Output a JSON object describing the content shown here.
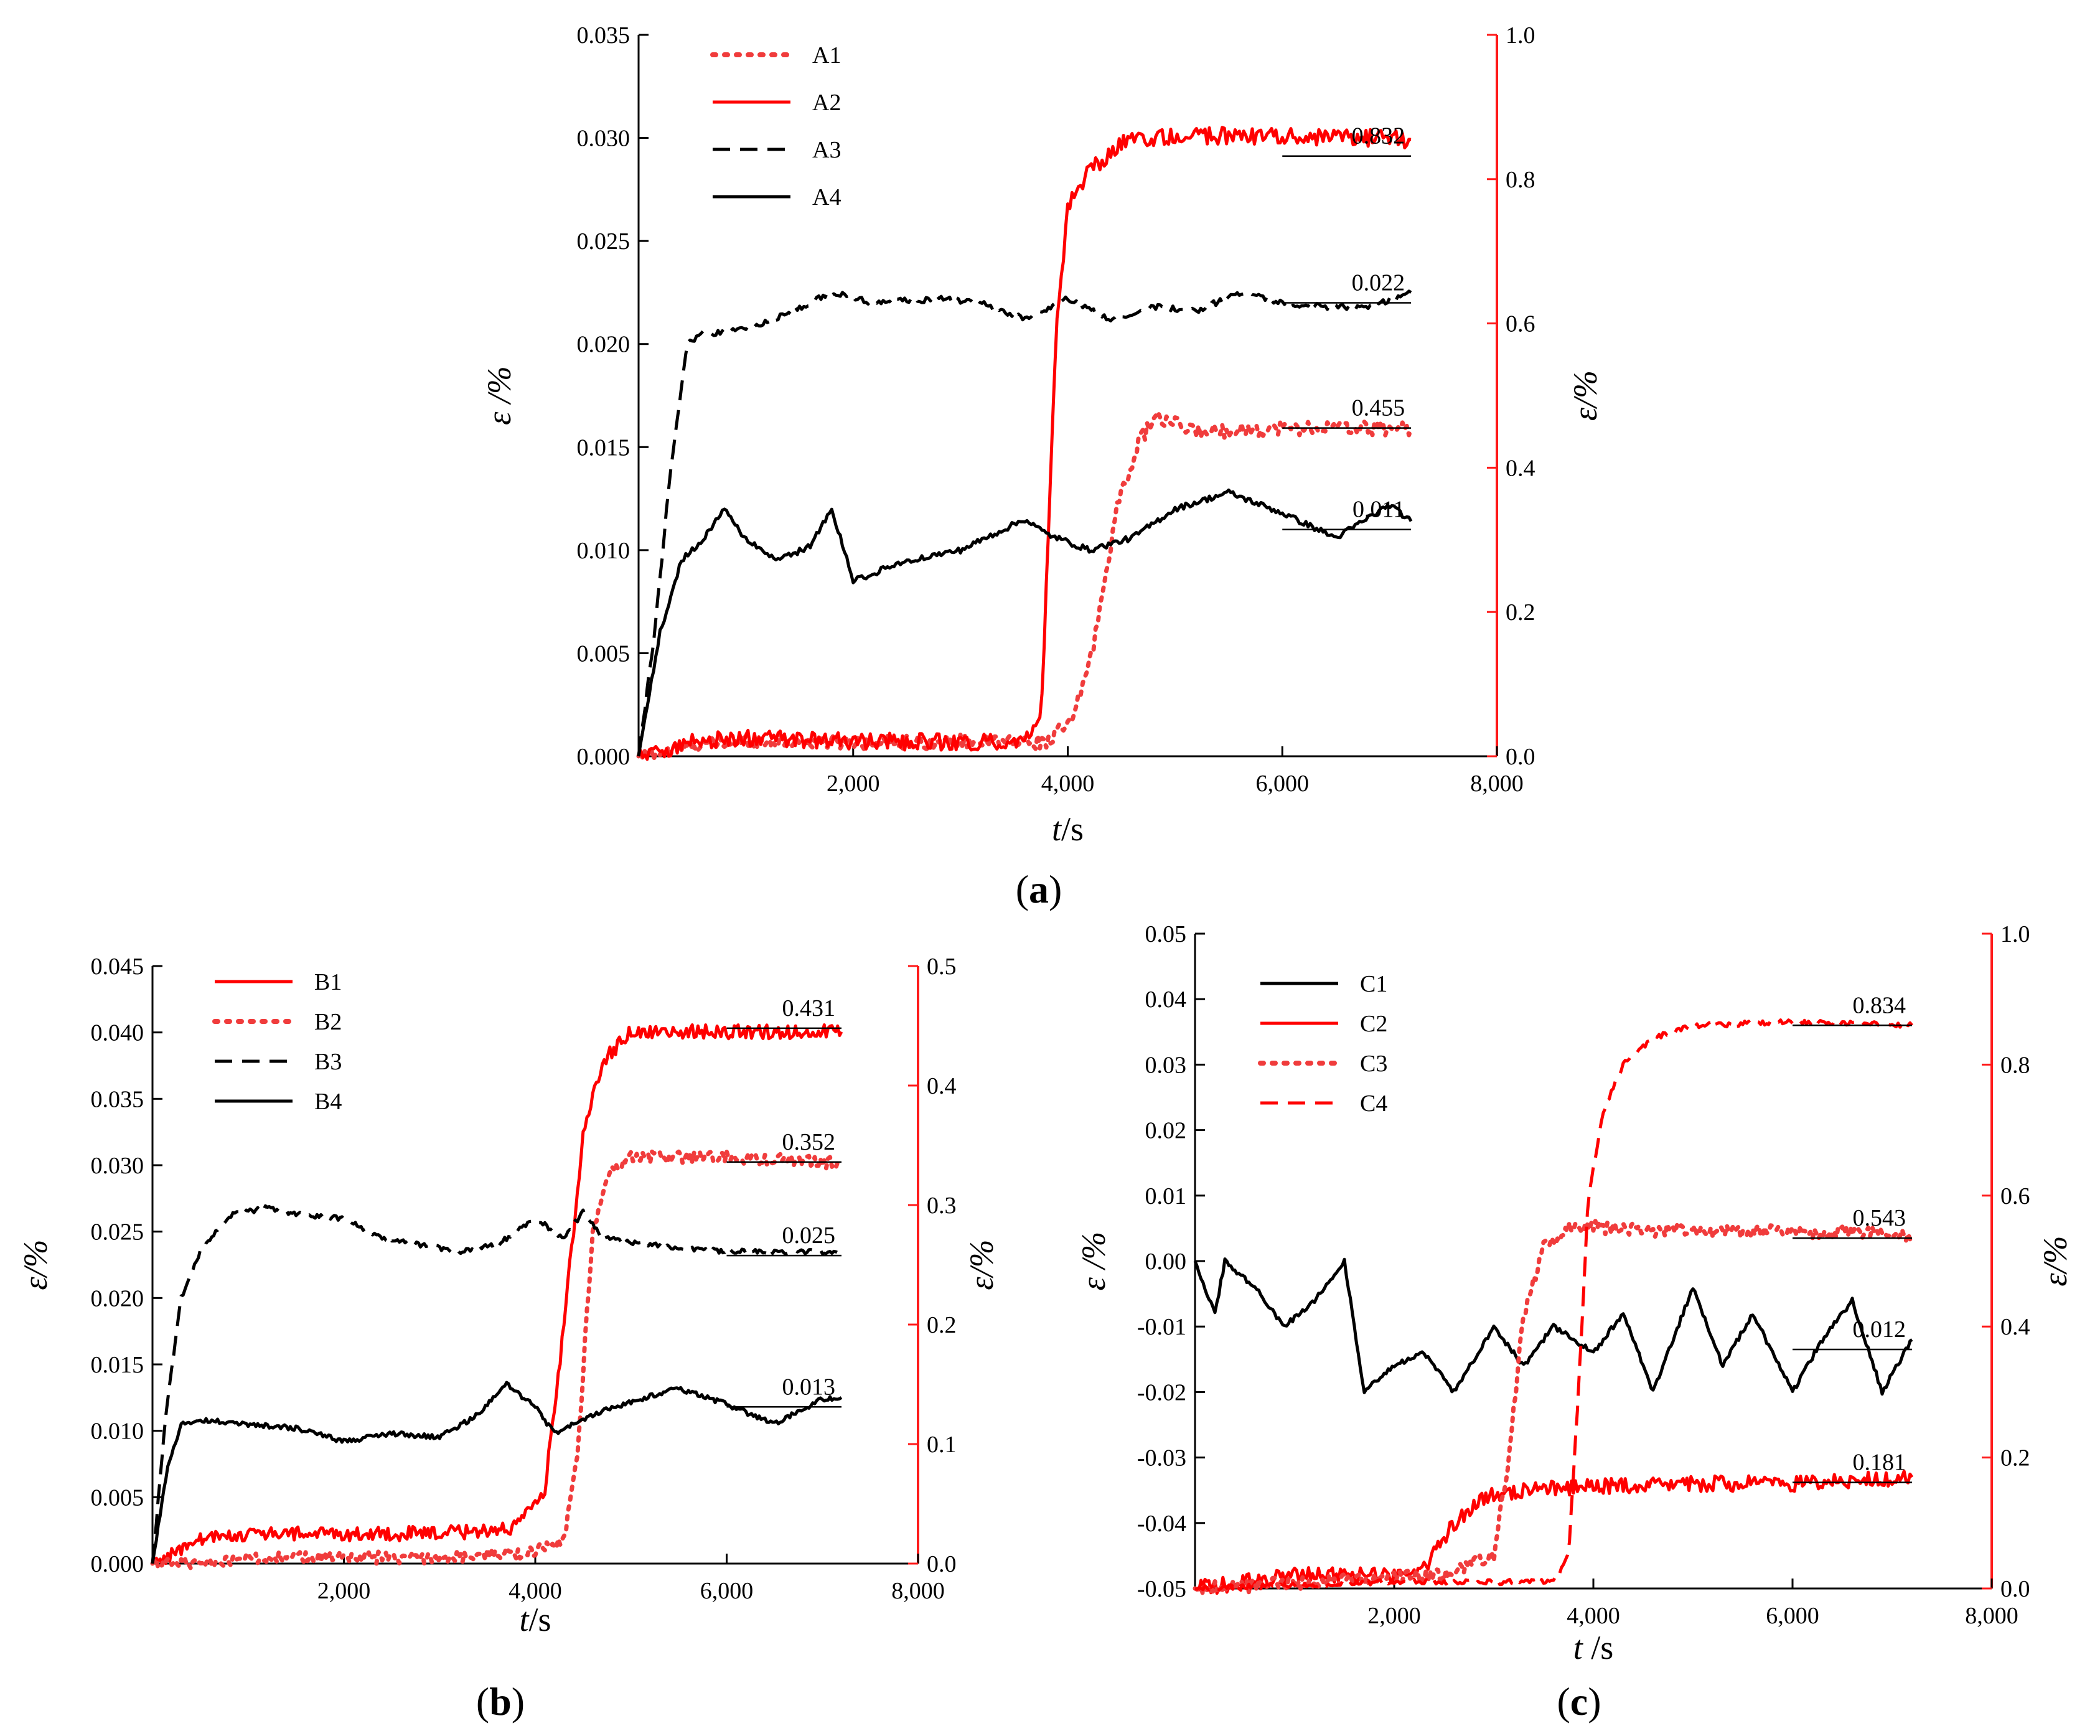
{
  "chart_data": [
    {
      "type": "line",
      "panel_label": "(a)",
      "panel_label_parts": [
        "(",
        "a",
        ")"
      ],
      "xlabel": "t/s",
      "xlabel_parts": [
        "t",
        "/s"
      ],
      "ylabel_left": "ε /%",
      "ylabel_right": "ε/%",
      "xlim": [
        0,
        8000
      ],
      "ylim_left": [
        0,
        0.035
      ],
      "ylim_right": [
        0,
        1.0
      ],
      "x_ticks": [
        "2,000",
        "4,000",
        "6,000",
        "8,000"
      ],
      "y_left_ticks": [
        "0.000",
        "0.005",
        "0.010",
        "0.015",
        "0.020",
        "0.025",
        "0.030",
        "0.035"
      ],
      "y_right_ticks": [
        "0.0",
        "0.2",
        "0.4",
        "0.6",
        "0.8",
        "1.0"
      ],
      "right_axis_color": "#ff1a1a",
      "series": [
        {
          "name": "A1",
          "axis": "right",
          "color": "#f03c3c",
          "style": "dotted",
          "x": [
            0,
            500,
            1000,
            2000,
            3000,
            3800,
            4050,
            4250,
            4450,
            4650,
            4800,
            5200,
            6000,
            7200
          ],
          "y": [
            0.0,
            0.015,
            0.02,
            0.02,
            0.02,
            0.02,
            0.05,
            0.16,
            0.34,
            0.43,
            0.47,
            0.45,
            0.455,
            0.455
          ]
        },
        {
          "name": "A2",
          "axis": "right",
          "color": "#ff0000",
          "style": "solid",
          "x": [
            0,
            500,
            1000,
            2000,
            3000,
            3600,
            3750,
            3830,
            3900,
            4000,
            4200,
            4500,
            5000,
            6000,
            7200
          ],
          "y": [
            0.0,
            0.02,
            0.025,
            0.02,
            0.02,
            0.02,
            0.05,
            0.35,
            0.6,
            0.76,
            0.81,
            0.85,
            0.86,
            0.86,
            0.855
          ]
        },
        {
          "name": "A3",
          "axis": "left",
          "color": "#000000",
          "style": "dashed",
          "x": [
            0,
            150,
            300,
            450,
            600,
            1000,
            1400,
            1800,
            2200,
            2800,
            3200,
            3600,
            4000,
            4400,
            4800,
            5200,
            5600,
            6000,
            6400,
            6800,
            7200
          ],
          "y": [
            0.0,
            0.006,
            0.014,
            0.02,
            0.0205,
            0.0207,
            0.0215,
            0.0225,
            0.022,
            0.0222,
            0.022,
            0.0212,
            0.0222,
            0.0212,
            0.0218,
            0.0216,
            0.0225,
            0.022,
            0.0218,
            0.0218,
            0.0225
          ]
        },
        {
          "name": "A4",
          "axis": "left",
          "color": "#000000",
          "style": "solid",
          "x": [
            0,
            200,
            400,
            600,
            800,
            1000,
            1300,
            1600,
            1800,
            2000,
            2500,
            3000,
            3600,
            3800,
            4200,
            4600,
            5000,
            5500,
            6000,
            6500,
            7000,
            7200
          ],
          "y": [
            0.0,
            0.006,
            0.0095,
            0.0105,
            0.012,
            0.0105,
            0.0095,
            0.0102,
            0.012,
            0.0085,
            0.0095,
            0.01,
            0.0115,
            0.0108,
            0.01,
            0.0106,
            0.012,
            0.0128,
            0.0118,
            0.0106,
            0.0122,
            0.0114
          ]
        }
      ],
      "reference_lines": [
        {
          "axis": "right",
          "value": 0.832,
          "label": "0.832"
        },
        {
          "axis": "left",
          "value": 0.022,
          "label": "0.022"
        },
        {
          "axis": "right",
          "value": 0.455,
          "label": "0.455"
        },
        {
          "axis": "left",
          "value": 0.011,
          "label": "0.011"
        }
      ]
    },
    {
      "type": "line",
      "panel_label": "(b)",
      "panel_label_parts": [
        "(",
        "b",
        ")"
      ],
      "xlabel": "t/s",
      "xlabel_parts": [
        "t",
        "/s"
      ],
      "ylabel_left": "ε/%",
      "ylabel_right": "ε/%",
      "xlim": [
        0,
        8000
      ],
      "ylim_left": [
        0,
        0.045
      ],
      "ylim_right": [
        0,
        0.5
      ],
      "x_ticks": [
        "2,000",
        "4,000",
        "6,000",
        "8,000"
      ],
      "y_left_ticks": [
        "0.000",
        "0.005",
        "0.010",
        "0.015",
        "0.020",
        "0.025",
        "0.030",
        "0.035",
        "0.040",
        "0.045"
      ],
      "y_right_ticks": [
        "0.0",
        "0.1",
        "0.2",
        "0.3",
        "0.4",
        "0.5"
      ],
      "right_axis_color": "#ff1a1a",
      "series": [
        {
          "name": "B1",
          "axis": "right",
          "color": "#ff0000",
          "style": "solid",
          "x": [
            0,
            500,
            1000,
            2000,
            3000,
            3800,
            4100,
            4300,
            4500,
            4700,
            5000,
            6000,
            7200
          ],
          "y": [
            0.0,
            0.02,
            0.025,
            0.025,
            0.025,
            0.03,
            0.06,
            0.2,
            0.36,
            0.42,
            0.445,
            0.445,
            0.445
          ]
        },
        {
          "name": "B2",
          "axis": "right",
          "color": "#f03c3c",
          "style": "dotted",
          "x": [
            0,
            500,
            1000,
            2000,
            3000,
            4000,
            4300,
            4450,
            4600,
            4800,
            5000,
            6000,
            7200
          ],
          "y": [
            0.0,
            0.0,
            0.005,
            0.005,
            0.005,
            0.01,
            0.02,
            0.1,
            0.28,
            0.33,
            0.34,
            0.34,
            0.335
          ]
        },
        {
          "name": "B3",
          "axis": "left",
          "color": "#000000",
          "style": "dashed",
          "x": [
            0,
            150,
            300,
            500,
            800,
            1200,
            1600,
            2000,
            2400,
            2800,
            3200,
            3600,
            4000,
            4300,
            4500,
            4700,
            5200,
            6000,
            6800,
            7200
          ],
          "y": [
            0.0,
            0.012,
            0.02,
            0.0235,
            0.0262,
            0.0268,
            0.0262,
            0.026,
            0.0245,
            0.024,
            0.0235,
            0.024,
            0.026,
            0.0245,
            0.0265,
            0.0245,
            0.024,
            0.0235,
            0.0235,
            0.0235
          ]
        },
        {
          "name": "B4",
          "axis": "left",
          "color": "#000000",
          "style": "solid",
          "x": [
            0,
            150,
            300,
            600,
            1000,
            1500,
            2000,
            2500,
            3000,
            3400,
            3700,
            4000,
            4200,
            4600,
            5000,
            5500,
            6000,
            6500,
            7000,
            7200
          ],
          "y": [
            0.0,
            0.007,
            0.0105,
            0.0108,
            0.0105,
            0.0102,
            0.0092,
            0.0098,
            0.0095,
            0.0112,
            0.0135,
            0.0118,
            0.0098,
            0.0112,
            0.0122,
            0.0132,
            0.012,
            0.0105,
            0.0124,
            0.0125
          ]
        }
      ],
      "reference_lines": [
        {
          "axis": "right",
          "value": 0.431,
          "display_value": 0.448,
          "label": "0.431"
        },
        {
          "axis": "right",
          "value": 0.352,
          "display_value": 0.336,
          "label": "0.352"
        },
        {
          "axis": "left",
          "value": 0.025,
          "display_value": 0.0232,
          "label": "0.025"
        },
        {
          "axis": "left",
          "value": 0.013,
          "display_value": 0.0118,
          "label": "0.013"
        }
      ]
    },
    {
      "type": "line",
      "panel_label": "(c)",
      "panel_label_parts": [
        "(",
        "c",
        ")"
      ],
      "xlabel": "t /s",
      "xlabel_parts": [
        "t",
        " /s"
      ],
      "ylabel_left": "ε /%",
      "ylabel_right": "ε/%",
      "xlim": [
        0,
        8000
      ],
      "ylim_left": [
        -0.05,
        0.05
      ],
      "ylim_right": [
        0,
        1.0
      ],
      "x_ticks": [
        "2,000",
        "4,000",
        "6,000",
        "8,000"
      ],
      "y_left_ticks": [
        "-0.05",
        "-0.04",
        "-0.03",
        "-0.02",
        "-0.01",
        "0.00",
        "0.01",
        "0.02",
        "0.03",
        "0.04",
        "0.05"
      ],
      "y_right_ticks": [
        "0.0",
        "0.2",
        "0.4",
        "0.6",
        "0.8",
        "1.0"
      ],
      "right_axis_color": "#ff1a1a",
      "series": [
        {
          "name": "C1",
          "axis": "left",
          "color": "#000000",
          "style": "solid",
          "x": [
            0,
            200,
            300,
            600,
            900,
            1200,
            1500,
            1700,
            2000,
            2300,
            2600,
            3000,
            3300,
            3600,
            4000,
            4300,
            4600,
            5000,
            5300,
            5600,
            6000,
            6300,
            6600,
            6900,
            7200
          ],
          "y": [
            0.0,
            -0.008,
            0.0,
            -0.004,
            -0.01,
            -0.006,
            0.0,
            -0.02,
            -0.016,
            -0.014,
            -0.02,
            -0.01,
            -0.016,
            -0.01,
            -0.014,
            -0.008,
            -0.02,
            -0.004,
            -0.016,
            -0.008,
            -0.02,
            -0.012,
            -0.006,
            -0.02,
            -0.012
          ]
        },
        {
          "name": "C2",
          "axis": "right",
          "color": "#ff0000",
          "style": "solid",
          "x": [
            0,
            500,
            1000,
            2000,
            2300,
            2600,
            2900,
            3300,
            4000,
            5000,
            6000,
            7200
          ],
          "y": [
            0.0,
            0.01,
            0.02,
            0.02,
            0.03,
            0.1,
            0.14,
            0.15,
            0.155,
            0.16,
            0.16,
            0.17
          ]
        },
        {
          "name": "C3",
          "axis": "right",
          "color": "#f03c3c",
          "style": "dotted",
          "x": [
            0,
            2500,
            3000,
            3150,
            3300,
            3500,
            3800,
            4200,
            5000,
            6000,
            7200
          ],
          "y": [
            0.0,
            0.02,
            0.05,
            0.2,
            0.42,
            0.52,
            0.555,
            0.55,
            0.545,
            0.545,
            0.54
          ]
        },
        {
          "name": "C4",
          "axis": "right",
          "color": "#ff0000",
          "style": "dashed",
          "x": [
            0,
            2000,
            3000,
            3600,
            3750,
            3850,
            3950,
            4100,
            4300,
            4600,
            5000,
            6000,
            7200
          ],
          "y": [
            0.0,
            0.01,
            0.01,
            0.01,
            0.05,
            0.3,
            0.6,
            0.73,
            0.8,
            0.84,
            0.86,
            0.865,
            0.86
          ]
        }
      ],
      "reference_lines": [
        {
          "axis": "right",
          "value": 0.834,
          "display_value": 0.86,
          "label": "0.834"
        },
        {
          "axis": "right",
          "value": 0.543,
          "display_value": 0.535,
          "label": "0.543"
        },
        {
          "axis": "left",
          "value": 0.012,
          "display_value": -0.0135,
          "label": "0.012"
        },
        {
          "axis": "right",
          "value": 0.181,
          "display_value": 0.162,
          "label": "0.181"
        }
      ]
    }
  ]
}
